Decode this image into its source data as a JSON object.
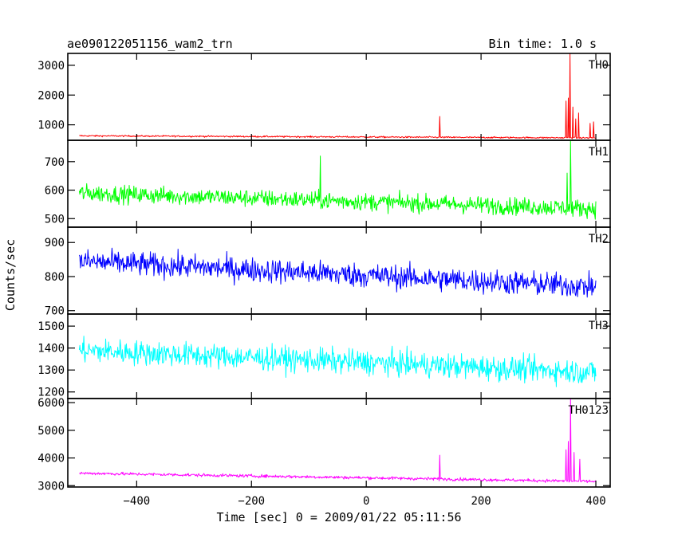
{
  "chart_data": {
    "type": "line",
    "title_left": "ae090122051156_wam2_trn",
    "title_right": "Bin time: 1.0 s",
    "xlabel": "Time [sec] 0 = 2009/01/22 05:11:56",
    "ylabel": "Counts/sec",
    "xlim": [
      -520,
      425
    ],
    "x_ticks": [
      -400,
      -200,
      0,
      200,
      400
    ],
    "x_range": [
      -500,
      400
    ],
    "bin_time_s": 1.0,
    "panels": [
      {
        "name": "TH0",
        "color": "#ff0000",
        "ylim": [
          480,
          3400
        ],
        "y_ticks": [
          1000,
          2000,
          3000
        ],
        "baseline_start": 630,
        "baseline_end": 560,
        "noise": 25,
        "features": [
          {
            "x": 128,
            "y": 1280
          },
          {
            "x": 348,
            "y": 1800
          },
          {
            "x": 352,
            "y": 1900
          },
          {
            "x": 355,
            "y": 3400
          },
          {
            "x": 360,
            "y": 1600
          },
          {
            "x": 365,
            "y": 1200
          },
          {
            "x": 370,
            "y": 1400
          },
          {
            "x": 390,
            "y": 1050
          },
          {
            "x": 396,
            "y": 1100
          }
        ]
      },
      {
        "name": "TH1",
        "color": "#00ff00",
        "ylim": [
          470,
          775
        ],
        "y_ticks": [
          500,
          600,
          700
        ],
        "baseline_start": 590,
        "baseline_end": 535,
        "noise": 30,
        "features": [
          {
            "x": 350,
            "y": 660
          },
          {
            "x": 356,
            "y": 775
          },
          {
            "x": -80,
            "y": 720
          }
        ]
      },
      {
        "name": "TH2",
        "color": "#0000ff",
        "ylim": [
          690,
          945
        ],
        "y_ticks": [
          700,
          800,
          900
        ],
        "baseline_start": 845,
        "baseline_end": 770,
        "noise": 35,
        "features": []
      },
      {
        "name": "TH3",
        "color": "#00ffff",
        "ylim": [
          1170,
          1555
        ],
        "y_ticks": [
          1200,
          1300,
          1400,
          1500
        ],
        "baseline_start": 1390,
        "baseline_end": 1290,
        "noise": 55,
        "features": []
      },
      {
        "name": "TH0123",
        "color": "#ff00ff",
        "ylim": [
          2950,
          6150
        ],
        "y_ticks": [
          3000,
          4000,
          5000,
          6000
        ],
        "baseline_start": 3450,
        "baseline_end": 3150,
        "noise": 55,
        "features": [
          {
            "x": 128,
            "y": 4100
          },
          {
            "x": 348,
            "y": 4300
          },
          {
            "x": 352,
            "y": 4600
          },
          {
            "x": 356,
            "y": 6150
          },
          {
            "x": 362,
            "y": 4200
          },
          {
            "x": 372,
            "y": 3950
          }
        ]
      }
    ]
  }
}
